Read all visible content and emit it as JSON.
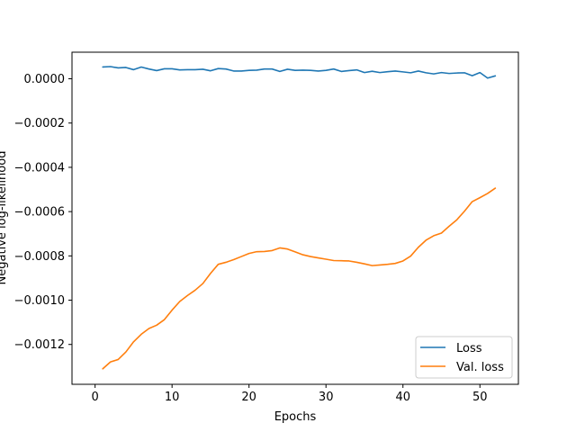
{
  "chart_data": {
    "type": "line",
    "title": "",
    "xlabel": "Epochs",
    "ylabel": "Negative log-likelihood",
    "xlim": [
      -3,
      55
    ],
    "ylim": [
      -0.00138,
      0.00012
    ],
    "xticks": [
      0,
      10,
      20,
      30,
      40,
      50
    ],
    "xtick_labels": [
      "0",
      "10",
      "20",
      "30",
      "40",
      "50"
    ],
    "yticks": [
      0.0,
      -0.0002,
      -0.0004,
      -0.0006,
      -0.0008,
      -0.001,
      -0.0012
    ],
    "ytick_labels": [
      "0.0000",
      "−0.0002",
      "−0.0004",
      "−0.0006",
      "−0.0008",
      "−0.0010",
      "−0.0012"
    ],
    "grid": false,
    "legend": "lower-right",
    "x": [
      1,
      2,
      3,
      4,
      5,
      6,
      7,
      8,
      9,
      10,
      11,
      12,
      13,
      14,
      15,
      16,
      17,
      18,
      19,
      20,
      21,
      22,
      23,
      24,
      25,
      26,
      27,
      28,
      29,
      30,
      31,
      32,
      33,
      34,
      35,
      36,
      37,
      38,
      39,
      40,
      41,
      42,
      43,
      44,
      45,
      46,
      47,
      48,
      49,
      50,
      51,
      52
    ],
    "series": [
      {
        "name": "Loss",
        "color": "#1f77b4",
        "values": [
          5.3e-05,
          5.5e-05,
          4.9e-05,
          5.1e-05,
          4.1e-05,
          5.3e-05,
          4.4e-05,
          3.7e-05,
          4.5e-05,
          4.5e-05,
          4e-05,
          4.1e-05,
          4.1e-05,
          4.3e-05,
          3.6e-05,
          4.6e-05,
          4.4e-05,
          3.5e-05,
          3.5e-05,
          3.8e-05,
          3.9e-05,
          4.4e-05,
          4.4e-05,
          3.3e-05,
          4.3e-05,
          3.8e-05,
          3.9e-05,
          3.8e-05,
          3.5e-05,
          3.8e-05,
          4.4e-05,
          3.3e-05,
          3.7e-05,
          4e-05,
          2.8e-05,
          3.4e-05,
          2.8e-05,
          3.2e-05,
          3.5e-05,
          3.1e-05,
          2.7e-05,
          3.5e-05,
          2.7e-05,
          2.2e-05,
          2.8e-05,
          2.4e-05,
          2.6e-05,
          2.7e-05,
          1.4e-05,
          2.8e-05,
          3e-06,
          1.3e-05
        ]
      },
      {
        "name": "Val. loss",
        "color": "#ff7f0e",
        "values": [
          -0.00131,
          -0.001279,
          -0.001268,
          -0.001234,
          -0.001188,
          -0.001154,
          -0.001128,
          -0.001113,
          -0.001088,
          -0.001045,
          -0.001006,
          -0.000979,
          -0.000955,
          -0.000925,
          -0.000879,
          -0.000838,
          -0.000829,
          -0.000817,
          -0.000803,
          -0.000789,
          -0.000781,
          -0.00078,
          -0.000776,
          -0.000764,
          -0.000769,
          -0.000782,
          -0.000795,
          -0.000803,
          -0.000809,
          -0.000815,
          -0.000821,
          -0.000822,
          -0.000823,
          -0.000829,
          -0.000836,
          -0.000844,
          -0.000841,
          -0.000838,
          -0.000834,
          -0.000823,
          -0.000801,
          -0.000761,
          -0.000729,
          -0.000709,
          -0.000697,
          -0.000666,
          -0.000637,
          -0.000598,
          -0.000555,
          -0.000537,
          -0.000518,
          -0.000494
        ]
      }
    ]
  }
}
